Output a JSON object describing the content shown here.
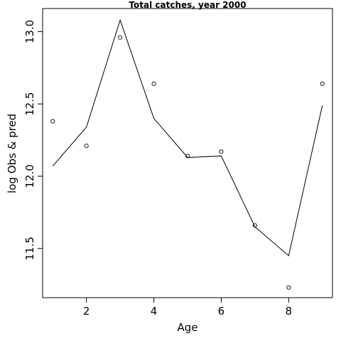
{
  "chart_data": {
    "type": "line",
    "title": "Total catches, year 2000",
    "xlabel": "Age",
    "ylabel": "log Obs & pred",
    "xlim": [
      0.7,
      9.3
    ],
    "ylim": [
      11.16,
      13.16
    ],
    "x_ticks": [
      2,
      4,
      6,
      8
    ],
    "y_ticks": [
      11.5,
      12.0,
      12.5,
      13.0
    ],
    "x_tick_labels": [
      "2",
      "4",
      "6",
      "8"
    ],
    "y_tick_labels": [
      "11.5",
      "12.0",
      "12.5",
      "13.0"
    ],
    "grid": false,
    "series": [
      {
        "style": "points",
        "x": [
          1,
          2,
          3,
          4,
          5,
          6,
          7,
          8,
          9
        ],
        "y": [
          12.38,
          12.21,
          12.96,
          12.64,
          12.14,
          12.17,
          11.66,
          11.23,
          12.64
        ]
      },
      {
        "style": "line",
        "x": [
          1,
          2,
          3,
          4,
          5,
          6,
          7,
          8,
          9
        ],
        "y": [
          12.07,
          12.34,
          13.08,
          12.4,
          12.13,
          12.14,
          11.65,
          11.45,
          12.49
        ]
      }
    ]
  }
}
